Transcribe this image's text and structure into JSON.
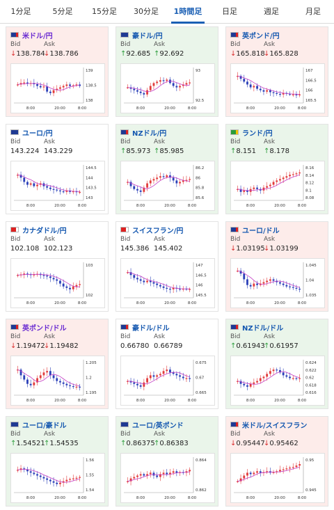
{
  "tabs": [
    {
      "label": "1分足",
      "active": false
    },
    {
      "label": "5分足",
      "active": false
    },
    {
      "label": "15分足",
      "active": false
    },
    {
      "label": "30分足",
      "active": false
    },
    {
      "label": "1時間足",
      "active": true
    },
    {
      "label": "日足",
      "active": false
    },
    {
      "label": "週足",
      "active": false
    },
    {
      "label": "月足",
      "active": false
    }
  ],
  "labels": {
    "bid": "Bid",
    "ask": "Ask"
  },
  "colors": {
    "up": "#2a9d3a",
    "down": "#d92b2b",
    "active_tab": "#1a5fb4",
    "ma_line": "#c43cc4",
    "candle_up": "#e23b3b",
    "candle_down": "#2a3fb8"
  },
  "cards": [
    {
      "name": "米ドル/円",
      "dir": "down",
      "title_color": "purple",
      "bid": "138.784",
      "ask": "138.786",
      "flag": [
        "#1f3a93",
        "#d22"
      ],
      "x_ticks": [
        "8:00",
        "20:00",
        "8:00"
      ],
      "y_ticks": [
        "139",
        "138.5",
        "138"
      ],
      "trend": [
        0.55,
        0.6,
        0.62,
        0.58,
        0.6,
        0.56,
        0.5,
        0.45,
        0.48,
        0.3,
        0.25,
        0.35,
        0.4,
        0.45,
        0.5,
        0.55,
        0.5,
        0.52,
        0.55,
        0.5
      ]
    },
    {
      "name": "豪ドル/円",
      "dir": "up",
      "title_color": "blue",
      "bid": "92.685",
      "ask": "92.692",
      "flag": [
        "#1f3a93",
        "#1f3a93"
      ],
      "x_ticks": [
        "8:00",
        "20:00",
        "8:00"
      ],
      "y_ticks": [
        "93",
        "92.5"
      ],
      "trend": [
        0.45,
        0.4,
        0.35,
        0.3,
        0.25,
        0.2,
        0.35,
        0.5,
        0.6,
        0.65,
        0.7,
        0.68,
        0.72,
        0.6,
        0.5,
        0.45,
        0.5,
        0.55,
        0.6,
        0.62
      ]
    },
    {
      "name": "英ポンド/円",
      "dir": "down",
      "title_color": "blue",
      "bid": "165.818",
      "ask": "165.828",
      "flag": [
        "#1f3a93",
        "#d22"
      ],
      "x_ticks": [
        "8:00",
        "20:00",
        "8:00"
      ],
      "y_ticks": [
        "167",
        "166.5",
        "166",
        "165.5"
      ],
      "trend": [
        0.85,
        0.75,
        0.65,
        0.55,
        0.45,
        0.5,
        0.4,
        0.35,
        0.3,
        0.35,
        0.28,
        0.25,
        0.22,
        0.2,
        0.25,
        0.22,
        0.2,
        0.2,
        0.18,
        0.2
      ]
    },
    {
      "name": "ユーロ/円",
      "dir": "none",
      "title_color": "blue",
      "bid": "143.224",
      "ask": "143.229",
      "flag": [
        "#1f3a93",
        "#1f3a93"
      ],
      "x_ticks": [
        "8:00",
        "20:00",
        "8:00"
      ],
      "y_ticks": [
        "144.5",
        "144",
        "143.5",
        "143"
      ],
      "trend": [
        0.8,
        0.7,
        0.55,
        0.45,
        0.5,
        0.4,
        0.45,
        0.5,
        0.4,
        0.35,
        0.3,
        0.28,
        0.25,
        0.22,
        0.2,
        0.25,
        0.2,
        0.22,
        0.2,
        0.2
      ]
    },
    {
      "name": "NZドル/円",
      "dir": "up",
      "title_color": "blue",
      "bid": "85.973",
      "ask": "85.985",
      "flag": [
        "#1f3a93",
        "#d22"
      ],
      "x_ticks": [
        "8:00",
        "20:00",
        "8:00"
      ],
      "y_ticks": [
        "86.2",
        "86",
        "85.8",
        "85.6"
      ],
      "trend": [
        0.55,
        0.4,
        0.3,
        0.25,
        0.2,
        0.35,
        0.5,
        0.6,
        0.65,
        0.7,
        0.75,
        0.72,
        0.78,
        0.7,
        0.6,
        0.5,
        0.55,
        0.6,
        0.62,
        0.65
      ]
    },
    {
      "name": "ランド/円",
      "dir": "up",
      "title_color": "blue",
      "bid": "8.151",
      "ask": "8.178",
      "flag": [
        "#2a9d3a",
        "#f2c200"
      ],
      "x_ticks": [
        "8:00",
        "20:00",
        "8:00"
      ],
      "y_ticks": [
        "8.16",
        "8.14",
        "8.12",
        "8.1",
        "8.08"
      ],
      "trend": [
        0.3,
        0.2,
        0.25,
        0.2,
        0.3,
        0.35,
        0.3,
        0.25,
        0.35,
        0.4,
        0.45,
        0.55,
        0.6,
        0.65,
        0.7,
        0.75,
        0.8,
        0.82,
        0.85,
        0.88
      ]
    },
    {
      "name": "カナダドル/円",
      "dir": "none",
      "title_color": "blue",
      "bid": "102.108",
      "ask": "102.123",
      "flag": [
        "#d22",
        "#ffffff"
      ],
      "x_ticks": [
        "8:00",
        "20:00",
        "8:00"
      ],
      "y_ticks": [
        "103",
        "102"
      ],
      "trend": [
        0.7,
        0.72,
        0.75,
        0.73,
        0.7,
        0.72,
        0.74,
        0.7,
        0.68,
        0.65,
        0.6,
        0.55,
        0.5,
        0.4,
        0.3,
        0.25,
        0.2,
        0.3,
        0.35,
        0.38
      ]
    },
    {
      "name": "スイスフラン/円",
      "dir": "none",
      "title_color": "blue",
      "bid": "145.386",
      "ask": "145.402",
      "flag": [
        "#d22",
        "#ffffff"
      ],
      "x_ticks": [
        "8:00",
        "20:00",
        "8:00"
      ],
      "y_ticks": [
        "147",
        "146.5",
        "146",
        "145.5"
      ],
      "trend": [
        0.8,
        0.7,
        0.6,
        0.55,
        0.5,
        0.45,
        0.5,
        0.45,
        0.4,
        0.35,
        0.3,
        0.25,
        0.22,
        0.2,
        0.25,
        0.22,
        0.2,
        0.22,
        0.2,
        0.21
      ]
    },
    {
      "name": "ユーロ/ドル",
      "dir": "down",
      "title_color": "blue",
      "bid": "1.03195",
      "ask": "1.03199",
      "flag": [
        "#1f3a93",
        "#d22"
      ],
      "x_ticks": [
        "8:00",
        "20:00",
        "8:00"
      ],
      "y_ticks": [
        "1.045",
        "1.04",
        "1.035"
      ],
      "trend": [
        0.85,
        0.75,
        0.55,
        0.35,
        0.3,
        0.4,
        0.35,
        0.4,
        0.45,
        0.5,
        0.55,
        0.5,
        0.45,
        0.4,
        0.35,
        0.3,
        0.28,
        0.25,
        0.22,
        0.2
      ]
    },
    {
      "name": "英ポンド/ドル",
      "dir": "down",
      "title_color": "purple",
      "bid": "1.19472",
      "ask": "1.19482",
      "flag": [
        "#1f3a93",
        "#d22"
      ],
      "x_ticks": [
        "8:00",
        "20:00",
        "8:00"
      ],
      "y_ticks": [
        "1.205",
        "1.2",
        "1.195"
      ],
      "trend": [
        0.8,
        0.6,
        0.45,
        0.3,
        0.25,
        0.35,
        0.5,
        0.6,
        0.7,
        0.75,
        0.6,
        0.5,
        0.4,
        0.35,
        0.3,
        0.25,
        0.22,
        0.2,
        0.2,
        0.18
      ]
    },
    {
      "name": "豪ドル/ドル",
      "dir": "none",
      "title_color": "blue",
      "bid": "0.66780",
      "ask": "0.66789",
      "flag": [
        "#1f3a93",
        "#d22"
      ],
      "x_ticks": [
        "8:00",
        "20:00",
        "8:00"
      ],
      "y_ticks": [
        "0.675",
        "0.67",
        "0.665"
      ],
      "trend": [
        0.4,
        0.35,
        0.3,
        0.25,
        0.2,
        0.35,
        0.5,
        0.6,
        0.55,
        0.6,
        0.65,
        0.75,
        0.8,
        0.7,
        0.65,
        0.6,
        0.55,
        0.5,
        0.5,
        0.48
      ]
    },
    {
      "name": "NZドル/ドル",
      "dir": "up",
      "title_color": "blue",
      "bid": "0.61943",
      "ask": "0.61957",
      "flag": [
        "#1f3a93",
        "#d22"
      ],
      "x_ticks": [
        "8:00",
        "20:00",
        "8:00"
      ],
      "y_ticks": [
        "0.624",
        "0.622",
        "0.62",
        "0.618",
        "0.616"
      ],
      "trend": [
        0.4,
        0.3,
        0.25,
        0.2,
        0.3,
        0.35,
        0.4,
        0.5,
        0.55,
        0.65,
        0.75,
        0.8,
        0.78,
        0.7,
        0.6,
        0.55,
        0.5,
        0.5,
        0.48,
        0.5
      ]
    },
    {
      "name": "ユーロ/豪ドル",
      "dir": "up",
      "title_color": "blue",
      "bid": "1.54521",
      "ask": "1.54535",
      "flag": [
        "#1f3a93",
        "#1f3a93"
      ],
      "x_ticks": [
        "8:00",
        "20:00",
        "8:00"
      ],
      "y_ticks": [
        "1.56",
        "1.55",
        "1.54"
      ],
      "trend": [
        0.7,
        0.75,
        0.72,
        0.65,
        0.6,
        0.55,
        0.5,
        0.45,
        0.4,
        0.35,
        0.3,
        0.25,
        0.2,
        0.25,
        0.3,
        0.35,
        0.38,
        0.4,
        0.42,
        0.45
      ]
    },
    {
      "name": "ユーロ/英ポンド",
      "dir": "up",
      "title_color": "blue",
      "bid": "0.86375",
      "ask": "0.86383",
      "flag": [
        "#1f3a93",
        "#1f3a93"
      ],
      "x_ticks": [
        "8:00",
        "20:00",
        "8:00"
      ],
      "y_ticks": [
        "0.864",
        "0.862"
      ],
      "trend": [
        0.3,
        0.4,
        0.45,
        0.5,
        0.55,
        0.5,
        0.55,
        0.6,
        0.5,
        0.45,
        0.55,
        0.6,
        0.55,
        0.6,
        0.65,
        0.6,
        0.62,
        0.6,
        0.65,
        0.7
      ]
    },
    {
      "name": "米ドル/スイスフラン",
      "dir": "down",
      "title_color": "blue",
      "bid": "0.95447",
      "ask": "0.95462",
      "flag": [
        "#1f3a93",
        "#d22"
      ],
      "x_ticks": [
        "8:00",
        "20:00",
        "8:00"
      ],
      "y_ticks": [
        "0.95",
        "0.945"
      ],
      "trend": [
        0.3,
        0.4,
        0.5,
        0.6,
        0.55,
        0.6,
        0.65,
        0.6,
        0.62,
        0.65,
        0.6,
        0.62,
        0.65,
        0.7,
        0.72,
        0.75,
        0.78,
        0.8,
        0.85,
        0.9
      ]
    }
  ]
}
